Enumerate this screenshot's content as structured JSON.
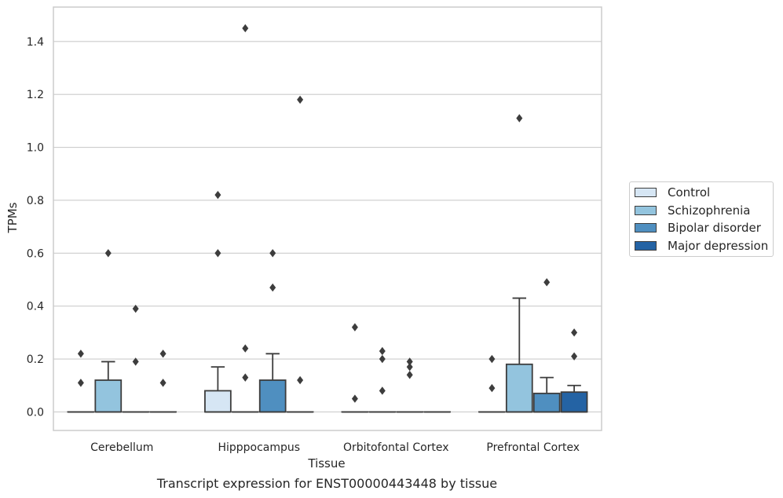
{
  "caption": "Transcript expression for ENST00000443448 by tissue",
  "chart_data": {
    "type": "box",
    "title": "",
    "xlabel": "Tissue",
    "ylabel": "TPMs",
    "ylim": [
      -0.07,
      1.53
    ],
    "yticks": [
      "0.0",
      "0.2",
      "0.4",
      "0.6",
      "0.8",
      "1.0",
      "1.2",
      "1.4"
    ],
    "grid": "horizontal",
    "legend_position": "right",
    "categories": [
      "Cerebellum",
      "Hipppocampus",
      "Orbitofontal Cortex",
      "Prefrontal Cortex"
    ],
    "series": [
      {
        "name": "Control",
        "color": "#d6e6f4"
      },
      {
        "name": "Schizophrenia",
        "color": "#93c4de"
      },
      {
        "name": "Bipolar disorder",
        "color": "#4f8fc0"
      },
      {
        "name": "Major depression",
        "color": "#2463a4"
      }
    ],
    "boxes": [
      {
        "category": "Cerebellum",
        "series": "Control",
        "q1": 0,
        "median": 0,
        "q3": 0,
        "whisker_low": 0,
        "whisker_high": 0,
        "outliers": [
          0.22,
          0.11
        ]
      },
      {
        "category": "Cerebellum",
        "series": "Schizophrenia",
        "q1": 0,
        "median": 0,
        "q3": 0.12,
        "whisker_low": 0,
        "whisker_high": 0.19,
        "outliers": [
          0.6
        ]
      },
      {
        "category": "Cerebellum",
        "series": "Bipolar disorder",
        "q1": 0,
        "median": 0,
        "q3": 0,
        "whisker_low": 0,
        "whisker_high": 0,
        "outliers": [
          0.39,
          0.19
        ]
      },
      {
        "category": "Cerebellum",
        "series": "Major depression",
        "q1": 0,
        "median": 0,
        "q3": 0,
        "whisker_low": 0,
        "whisker_high": 0,
        "outliers": [
          0.22,
          0.11
        ]
      },
      {
        "category": "Hipppocampus",
        "series": "Control",
        "q1": 0,
        "median": 0,
        "q3": 0.08,
        "whisker_low": 0,
        "whisker_high": 0.17,
        "outliers": [
          0.82,
          0.6
        ]
      },
      {
        "category": "Hipppocampus",
        "series": "Schizophrenia",
        "q1": 0,
        "median": 0,
        "q3": 0,
        "whisker_low": 0,
        "whisker_high": 0,
        "outliers": [
          1.45,
          0.24,
          0.13
        ]
      },
      {
        "category": "Hipppocampus",
        "series": "Bipolar disorder",
        "q1": 0,
        "median": 0,
        "q3": 0.12,
        "whisker_low": 0,
        "whisker_high": 0.22,
        "outliers": [
          0.6,
          0.47
        ]
      },
      {
        "category": "Hipppocampus",
        "series": "Major depression",
        "q1": 0,
        "median": 0,
        "q3": 0,
        "whisker_low": 0,
        "whisker_high": 0,
        "outliers": [
          1.18,
          0.12
        ]
      },
      {
        "category": "Orbitofontal Cortex",
        "series": "Control",
        "q1": 0,
        "median": 0,
        "q3": 0,
        "whisker_low": 0,
        "whisker_high": 0,
        "outliers": [
          0.32,
          0.05
        ]
      },
      {
        "category": "Orbitofontal Cortex",
        "series": "Schizophrenia",
        "q1": 0,
        "median": 0,
        "q3": 0,
        "whisker_low": 0,
        "whisker_high": 0,
        "outliers": [
          0.23,
          0.2,
          0.08
        ]
      },
      {
        "category": "Orbitofontal Cortex",
        "series": "Bipolar disorder",
        "q1": 0,
        "median": 0,
        "q3": 0,
        "whisker_low": 0,
        "whisker_high": 0,
        "outliers": [
          0.19,
          0.17,
          0.14
        ]
      },
      {
        "category": "Orbitofontal Cortex",
        "series": "Major depression",
        "q1": 0,
        "median": 0,
        "q3": 0,
        "whisker_low": 0,
        "whisker_high": 0,
        "outliers": []
      },
      {
        "category": "Prefrontal Cortex",
        "series": "Control",
        "q1": 0,
        "median": 0,
        "q3": 0,
        "whisker_low": 0,
        "whisker_high": 0,
        "outliers": [
          0.2,
          0.09
        ]
      },
      {
        "category": "Prefrontal Cortex",
        "series": "Schizophrenia",
        "q1": 0,
        "median": 0,
        "q3": 0.18,
        "whisker_low": 0,
        "whisker_high": 0.43,
        "outliers": [
          1.11
        ]
      },
      {
        "category": "Prefrontal Cortex",
        "series": "Bipolar disorder",
        "q1": 0,
        "median": 0,
        "q3": 0.07,
        "whisker_low": 0,
        "whisker_high": 0.13,
        "outliers": [
          0.49
        ]
      },
      {
        "category": "Prefrontal Cortex",
        "series": "Major depression",
        "q1": 0,
        "median": 0,
        "q3": 0.075,
        "whisker_low": 0,
        "whisker_high": 0.1,
        "outliers": [
          0.3,
          0.21
        ]
      }
    ]
  }
}
